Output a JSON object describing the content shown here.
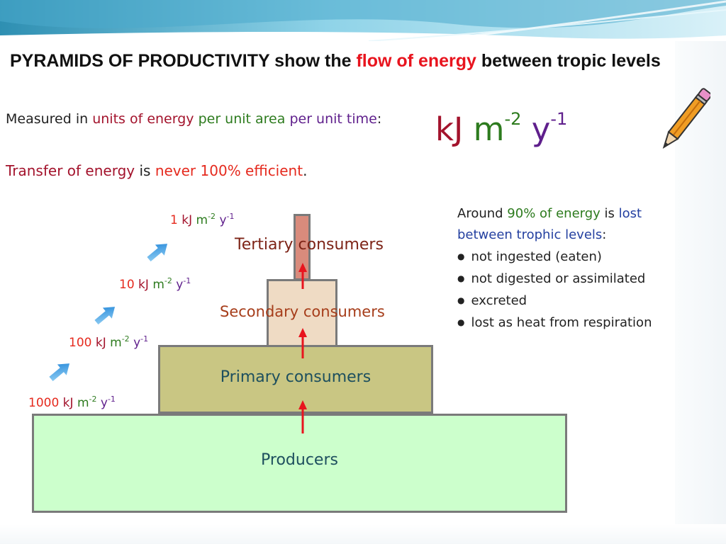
{
  "title": {
    "part1": "PYRAMIDS OF PRODUCTIVITY show the ",
    "highlight": "flow of energy",
    "part2": " between tropic levels"
  },
  "measured": {
    "prefix": "Measured in ",
    "units_energy": "units of energy",
    "per_area": " per unit area",
    "per_time": " per unit time",
    "colon": ":"
  },
  "big_unit": {
    "kj": "kJ",
    "m": "m",
    "m_exp": "-2",
    "y": "y",
    "y_exp": "-1"
  },
  "transfer": {
    "part1": "Transfer of energy",
    "part2": " is ",
    "part3": "never 100% efficient",
    "part4": "."
  },
  "pyramid": {
    "levels": [
      {
        "name": "Producers",
        "energy_value": "1000"
      },
      {
        "name": "Primary consumers",
        "energy_value": "100"
      },
      {
        "name": "Secondary consumers",
        "energy_value": "10"
      },
      {
        "name": "Tertiary consumers",
        "energy_value": "1"
      }
    ],
    "energy_units": {
      "kj": "kJ",
      "m": "m",
      "m_exp": "-2",
      "y": "y",
      "y_exp": "-1"
    }
  },
  "note": {
    "prefix": "Around ",
    "percent": "90% of energy",
    "is": " is ",
    "lost": "lost between trophic levels",
    "colon": ":",
    "bullets": [
      "not ingested (eaten)",
      "not digested or assimilated",
      "excreted",
      "lost as heat from respiration"
    ]
  },
  "colors": {
    "producers_fill": "#ccffcc",
    "primary_fill": "#c9c683",
    "secondary_fill": "#efdbc4",
    "tertiary_fill": "#d98b7c",
    "arrow_red": "#e8141e",
    "arrow_blue": "#2b8fe0"
  },
  "icons": [
    "pencil-icon",
    "energy-flow-arrow-icon",
    "upward-transfer-arrow-icon"
  ]
}
